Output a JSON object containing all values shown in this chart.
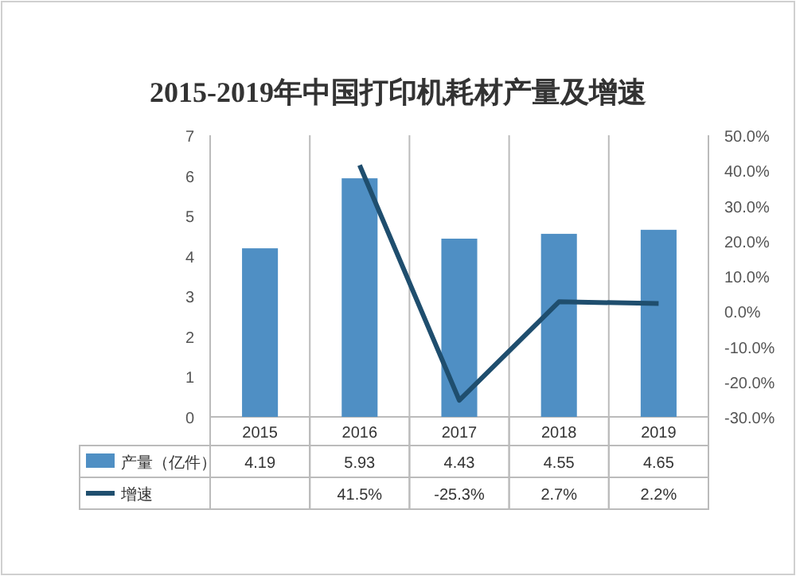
{
  "chart_data": {
    "type": "bar",
    "title": "2015-2019年中国打印机耗材产量及增速",
    "categories": [
      "2015",
      "2016",
      "2017",
      "2018",
      "2019"
    ],
    "series": [
      {
        "name": "产量（亿件）",
        "color": "#4f8fc4",
        "values": [
          4.19,
          5.93,
          4.43,
          4.55,
          4.65
        ],
        "value_labels": [
          "4.19",
          "5.93",
          "4.43",
          "4.55",
          "4.65"
        ]
      },
      {
        "name": "增速",
        "type": "line",
        "axis": "y2",
        "color": "#1f4e6e",
        "values": [
          null,
          41.5,
          -25.3,
          2.7,
          2.2
        ],
        "value_labels": [
          null,
          "41.5%",
          "-25.3%",
          "2.7%",
          "2.2%"
        ]
      }
    ],
    "ylim": [
      0,
      7
    ],
    "yticks": [
      0,
      1,
      2,
      3,
      4,
      5,
      6,
      7
    ],
    "y2lim": [
      -30,
      50
    ],
    "y2ticks": [
      {
        "value": -30,
        "label": "-30.0%"
      },
      {
        "value": -20,
        "label": "-20.0%"
      },
      {
        "value": -10,
        "label": "-10.0%"
      },
      {
        "value": 0,
        "label": "0.0%"
      },
      {
        "value": 10,
        "label": "10.0%"
      },
      {
        "value": 20,
        "label": "20.0%"
      },
      {
        "value": 30,
        "label": "30.0%"
      },
      {
        "value": 40,
        "label": "40.0%"
      },
      {
        "value": 50,
        "label": "50.0%"
      }
    ],
    "legend": "bottom",
    "marker": "none"
  }
}
